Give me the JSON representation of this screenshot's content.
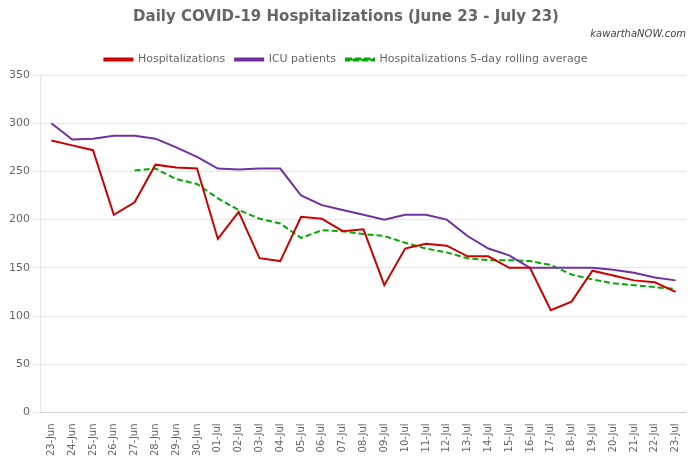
{
  "chart_data": {
    "type": "line",
    "title": "Daily COVID-19 Hospitalizations (June 23 - July 23)",
    "annotations": [
      "kawarthaNOW.com"
    ],
    "categories": [
      "23-Jun",
      "24-Jun",
      "25-Jun",
      "26-Jun",
      "27-Jun",
      "28-Jun",
      "29-Jun",
      "30-Jun",
      "01-Jul",
      "02-Jul",
      "03-Jul",
      "04-Jul",
      "05-Jul",
      "06-Jul",
      "07-Jul",
      "08-Jul",
      "09-Jul",
      "10-Jul",
      "11-Jul",
      "12-Jul",
      "13-Jul",
      "14-Jul",
      "15-Jul",
      "16-Jul",
      "17-Jul",
      "18-Jul",
      "19-Jul",
      "20-Jul",
      "21-Jul",
      "22-Jul",
      "23-Jul"
    ],
    "series": [
      {
        "name": "Hospitalizations",
        "color": "#cc0000",
        "line_style": "solid",
        "values": [
          282,
          277,
          272,
          205,
          218,
          257,
          254,
          253,
          180,
          208,
          160,
          157,
          203,
          201,
          188,
          190,
          132,
          170,
          175,
          173,
          162,
          162,
          150,
          150,
          106,
          115,
          147,
          142,
          137,
          135,
          125
        ]
      },
      {
        "name": "ICU patients",
        "color": "#7030a0",
        "line_style": "solid",
        "values": [
          300,
          283,
          284,
          287,
          287,
          284,
          275,
          265,
          253,
          252,
          253,
          253,
          225,
          215,
          210,
          205,
          200,
          205,
          205,
          200,
          183,
          170,
          163,
          150,
          150,
          150,
          150,
          148,
          145,
          140,
          137
        ]
      },
      {
        "name": "Hospitalizations 5-day rolling average",
        "color": "#00aa00",
        "line_style": "dashed",
        "values": [
          null,
          null,
          null,
          null,
          251,
          253,
          242,
          237,
          222,
          210,
          201,
          196,
          181,
          189,
          188,
          185,
          183,
          176,
          170,
          166,
          160,
          158,
          158,
          157,
          153,
          143,
          138,
          134,
          132,
          130,
          128
        ]
      }
    ],
    "marker": "none",
    "ylim": [
      0,
      350
    ],
    "yticks": [
      0,
      50,
      100,
      150,
      200,
      250,
      300,
      350
    ],
    "grid": true,
    "legend": "top"
  }
}
